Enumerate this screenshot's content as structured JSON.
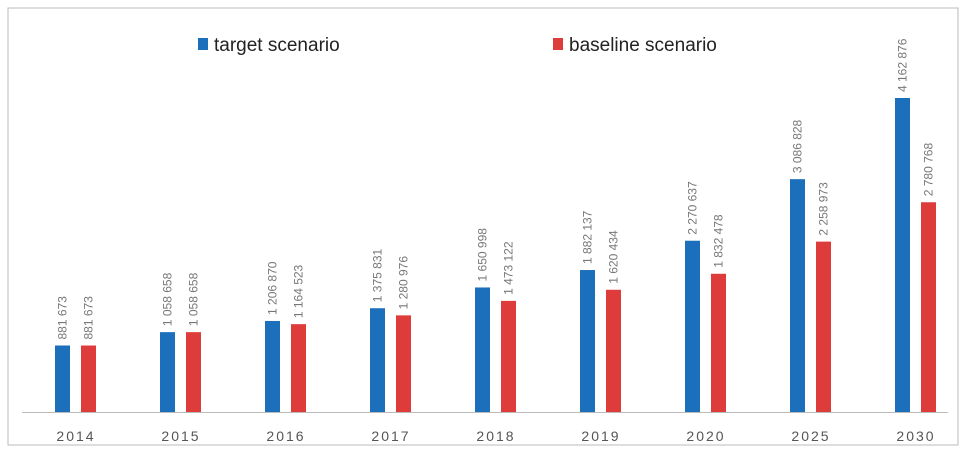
{
  "chart_data": {
    "type": "bar",
    "categories": [
      "2014",
      "2015",
      "2016",
      "2017",
      "2018",
      "2019",
      "2020",
      "2025",
      "2030"
    ],
    "series": [
      {
        "name": "target scenario",
        "color": "#1c6fbb",
        "values": [
          881673,
          1058658,
          1206870,
          1375831,
          1650998,
          1882137,
          2270637,
          3086828,
          4162876
        ],
        "value_labels": [
          "881 673",
          "1 058 658",
          "1 206 870",
          "1 375 831",
          "1 650 998",
          "1 882 137",
          "2 270 637",
          "3 086 828",
          "4 162 876"
        ]
      },
      {
        "name": "baseline scenario",
        "color": "#de3b3b",
        "values": [
          881673,
          1058658,
          1164523,
          1280976,
          1473122,
          1620434,
          1832478,
          2258973,
          2780768
        ],
        "value_labels": [
          "881 673",
          "1 058 658",
          "1 164 523",
          "1 280 976",
          "1 473 122",
          "1 620 434",
          "1 832 478",
          "2 258 973",
          "2 780 768"
        ]
      }
    ]
  }
}
